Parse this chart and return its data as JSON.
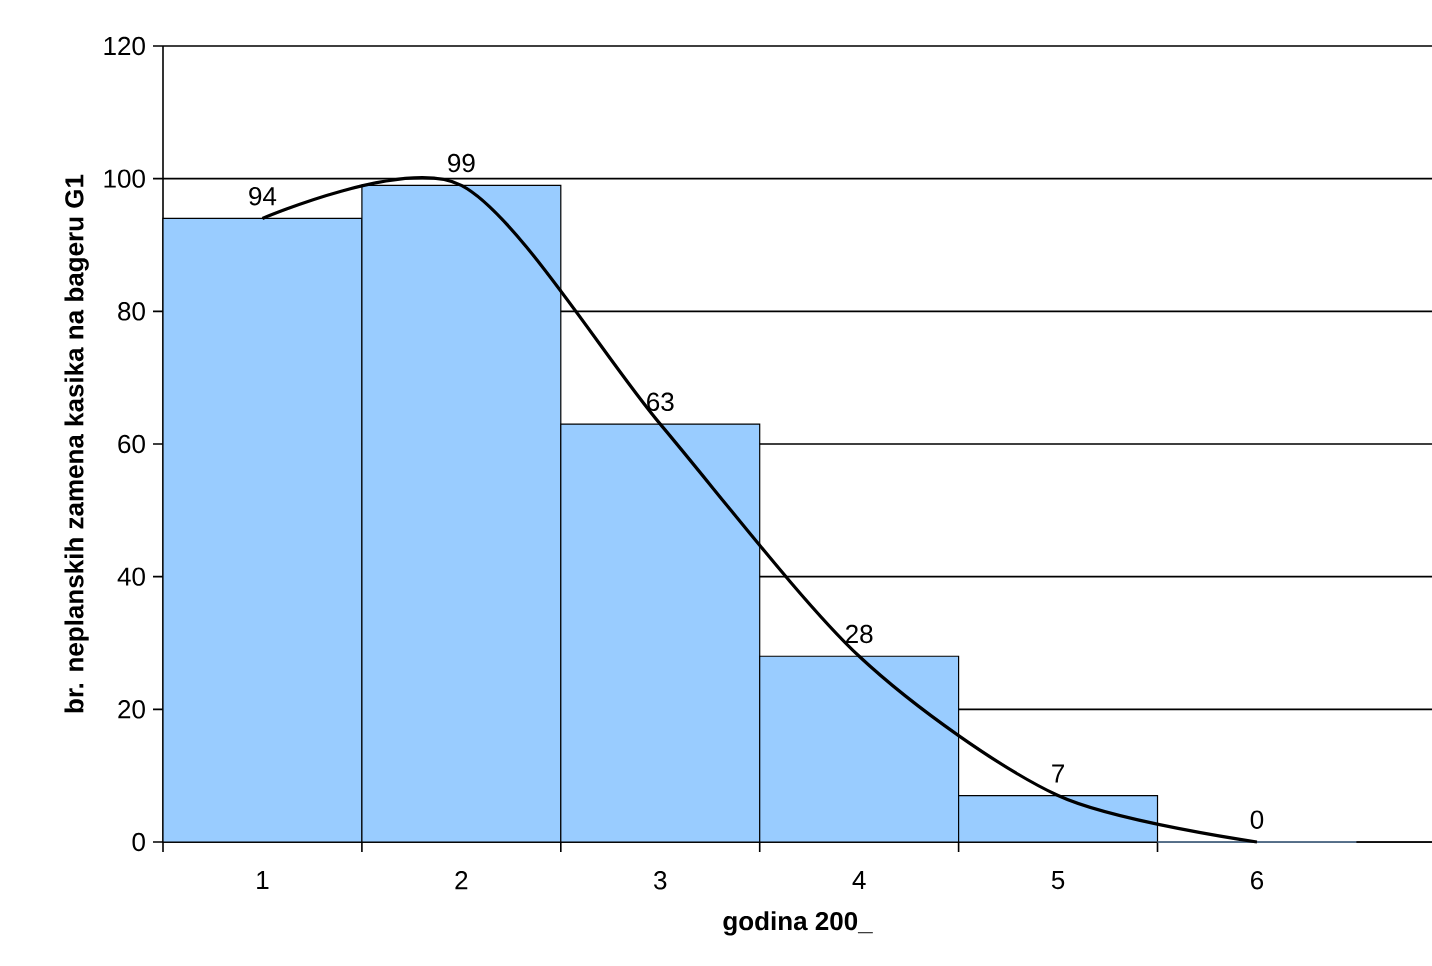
{
  "chart_data": {
    "type": "bar",
    "xlabel": "godina 200_",
    "ylabel": "br. neplanskih zamena kasika na bageru G1",
    "categories": [
      "1",
      "2",
      "3",
      "4",
      "5",
      "6"
    ],
    "series": [
      {
        "color": "#99ccff",
        "values": [
          94,
          99,
          63,
          28,
          7,
          0
        ]
      },
      {
        "type": "line",
        "color": "#000000",
        "values": [
          94,
          99,
          63,
          28,
          7,
          0
        ],
        "value_labels": [
          "94",
          "99",
          "63",
          "28",
          "7",
          "0"
        ]
      }
    ],
    "ylim": [
      0,
      120
    ],
    "yticks": [
      0,
      20,
      40,
      60,
      80,
      100,
      120
    ],
    "grid": "y",
    "marker": "none",
    "line_style": "solid"
  }
}
